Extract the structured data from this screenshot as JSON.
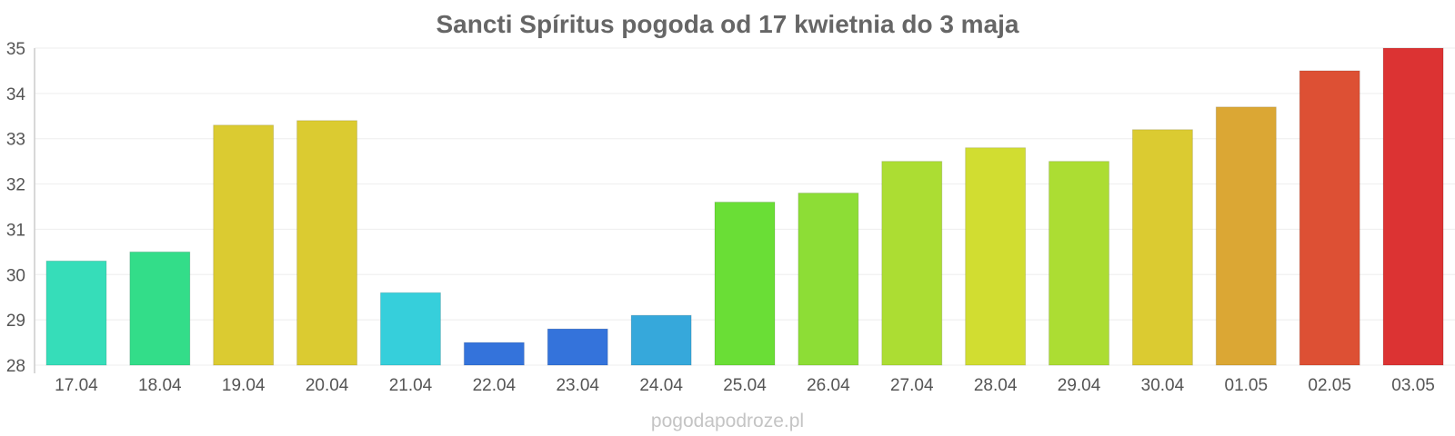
{
  "chart_data": {
    "type": "bar",
    "title": "Sancti Spíritus pogoda od 17 kwietnia do 3 maja",
    "xlabel": "",
    "ylabel": "",
    "categories": [
      "17.04",
      "18.04",
      "19.04",
      "20.04",
      "21.04",
      "22.04",
      "23.04",
      "24.04",
      "25.04",
      "26.04",
      "27.04",
      "28.04",
      "29.04",
      "30.04",
      "01.05",
      "02.05",
      "03.05"
    ],
    "values": [
      30.3,
      30.5,
      33.3,
      33.4,
      29.6,
      28.5,
      28.8,
      29.1,
      31.6,
      31.8,
      32.5,
      32.8,
      32.5,
      33.2,
      33.7,
      34.5,
      35.0
    ],
    "colors": [
      "#36ddb9",
      "#33dd89",
      "#dbcb31",
      "#dbcb31",
      "#36cfdb",
      "#3473db",
      "#3473db",
      "#36a8db",
      "#6ade36",
      "#8ddd36",
      "#acdd33",
      "#d1dd31",
      "#acdd33",
      "#dbcb31",
      "#dba734",
      "#dd5034",
      "#dc3333"
    ],
    "ylim": [
      28,
      35
    ],
    "yticks": [
      28,
      29,
      30,
      31,
      32,
      33,
      34,
      35
    ],
    "grid": true,
    "legend": "none"
  },
  "watermark": "pogodapodroze.pl"
}
